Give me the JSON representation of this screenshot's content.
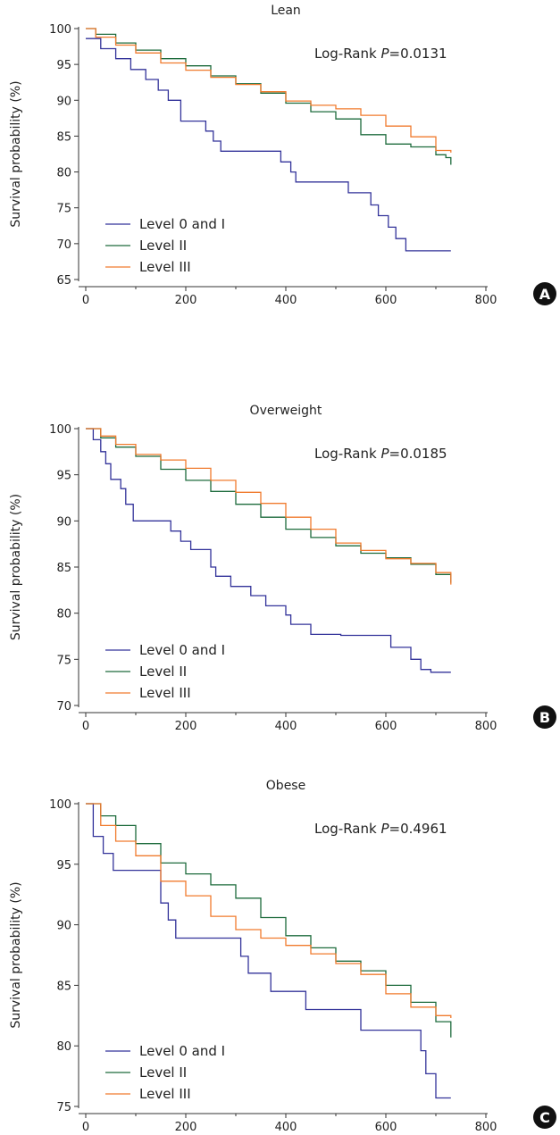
{
  "chart_data": [
    {
      "type": "line",
      "panel": "A",
      "title": "Lean",
      "xlabel": "",
      "ylabel": "Survival probability (%)",
      "xlim": [
        0,
        800
      ],
      "ylim": [
        65,
        100
      ],
      "xticks": [
        0,
        200,
        400,
        600,
        800
      ],
      "yticks": [
        65,
        70,
        75,
        80,
        85,
        90,
        95,
        100
      ],
      "annotation": {
        "prefix": "Log-Rank ",
        "p": "P",
        "value": "=0.0131"
      },
      "legend_position": "bottom-left",
      "series": [
        {
          "name": "Level 0 and I",
          "color": "#33339a",
          "x": [
            0,
            10,
            30,
            60,
            90,
            120,
            145,
            165,
            190,
            240,
            255,
            270,
            390,
            410,
            420,
            525,
            570,
            585,
            605,
            620,
            640,
            730
          ],
          "y": [
            98.6,
            98.6,
            97.2,
            95.8,
            94.3,
            92.9,
            91.4,
            90.0,
            87.1,
            85.7,
            84.3,
            82.9,
            81.4,
            80.0,
            78.6,
            77.1,
            75.4,
            73.9,
            72.3,
            70.7,
            69.0,
            69.0
          ]
        },
        {
          "name": "Level II",
          "color": "#1d6b3c",
          "x": [
            0,
            20,
            60,
            100,
            150,
            200,
            250,
            300,
            350,
            400,
            450,
            500,
            550,
            600,
            650,
            700,
            720,
            730
          ],
          "y": [
            100,
            99.2,
            98.0,
            97.0,
            95.8,
            94.8,
            93.4,
            92.3,
            91.0,
            89.6,
            88.4,
            87.4,
            85.2,
            83.9,
            83.5,
            82.4,
            82.0,
            81.0
          ]
        },
        {
          "name": "Level III",
          "color": "#f07b2e",
          "x": [
            0,
            20,
            60,
            100,
            150,
            200,
            250,
            300,
            350,
            400,
            450,
            500,
            550,
            600,
            650,
            700,
            730
          ],
          "y": [
            100,
            98.8,
            97.7,
            96.6,
            95.2,
            94.2,
            93.2,
            92.2,
            91.2,
            89.9,
            89.3,
            88.8,
            87.9,
            86.4,
            84.9,
            83.0,
            82.7
          ]
        }
      ]
    },
    {
      "type": "line",
      "panel": "B",
      "title": "Overweight",
      "xlabel": "",
      "ylabel": "Survival probability (%)",
      "xlim": [
        0,
        800
      ],
      "ylim": [
        70,
        100
      ],
      "xticks": [
        0,
        200,
        400,
        600,
        800
      ],
      "yticks": [
        70,
        75,
        80,
        85,
        90,
        95,
        100
      ],
      "annotation": {
        "prefix": "Log-Rank ",
        "p": "P",
        "value": "=0.0185"
      },
      "legend_position": "bottom-left",
      "series": [
        {
          "name": "Level 0 and I",
          "color": "#33339a",
          "x": [
            0,
            15,
            30,
            40,
            50,
            70,
            80,
            95,
            170,
            190,
            210,
            250,
            260,
            290,
            330,
            360,
            400,
            410,
            450,
            510,
            610,
            650,
            670,
            690,
            730
          ],
          "y": [
            100,
            98.8,
            97.5,
            96.2,
            94.5,
            93.5,
            91.8,
            90.0,
            88.9,
            87.8,
            86.9,
            85.0,
            84.0,
            82.9,
            81.9,
            80.8,
            79.8,
            78.8,
            77.7,
            77.6,
            76.3,
            75.0,
            73.9,
            73.6,
            73.6
          ]
        },
        {
          "name": "Level II",
          "color": "#1d6b3c",
          "x": [
            0,
            30,
            60,
            100,
            150,
            200,
            250,
            300,
            350,
            400,
            450,
            500,
            550,
            600,
            650,
            700,
            730
          ],
          "y": [
            100,
            99.0,
            98.0,
            97.0,
            95.6,
            94.4,
            93.2,
            91.8,
            90.4,
            89.1,
            88.2,
            87.3,
            86.5,
            86.0,
            85.3,
            84.2,
            83.3
          ]
        },
        {
          "name": "Level III",
          "color": "#f07b2e",
          "x": [
            0,
            30,
            60,
            100,
            150,
            200,
            250,
            300,
            350,
            400,
            450,
            500,
            550,
            600,
            650,
            700,
            730
          ],
          "y": [
            100,
            99.2,
            98.3,
            97.2,
            96.6,
            95.7,
            94.4,
            93.1,
            91.9,
            90.4,
            89.1,
            87.6,
            86.8,
            85.9,
            85.4,
            84.4,
            83.1
          ]
        }
      ]
    },
    {
      "type": "line",
      "panel": "C",
      "title": "Obese",
      "xlabel": "",
      "ylabel": "Survival probability (%)",
      "xlim": [
        0,
        800
      ],
      "ylim": [
        75,
        100
      ],
      "xticks": [
        0,
        200,
        400,
        600,
        800
      ],
      "yticks": [
        75,
        80,
        85,
        90,
        95,
        100
      ],
      "annotation": {
        "prefix": "Log-Rank ",
        "p": "P",
        "value": "=0.4961"
      },
      "legend_position": "bottom-left",
      "series": [
        {
          "name": "Level 0 and I",
          "color": "#33339a",
          "x": [
            0,
            15,
            35,
            55,
            140,
            150,
            165,
            180,
            190,
            310,
            325,
            370,
            440,
            550,
            670,
            680,
            700,
            730
          ],
          "y": [
            100,
            97.3,
            95.9,
            94.5,
            94.5,
            91.8,
            90.4,
            88.9,
            88.9,
            87.4,
            86.0,
            84.5,
            83.0,
            81.3,
            79.6,
            77.7,
            75.7,
            75.7
          ]
        },
        {
          "name": "Level II",
          "color": "#1d6b3c",
          "x": [
            0,
            30,
            60,
            100,
            150,
            200,
            250,
            300,
            350,
            400,
            450,
            500,
            550,
            600,
            650,
            700,
            730
          ],
          "y": [
            100,
            99.0,
            98.2,
            96.7,
            95.1,
            94.2,
            93.3,
            92.2,
            90.6,
            89.1,
            88.1,
            87.0,
            86.2,
            85.0,
            83.6,
            82.0,
            80.7
          ]
        },
        {
          "name": "Level III",
          "color": "#f07b2e",
          "x": [
            0,
            30,
            60,
            100,
            150,
            200,
            250,
            300,
            350,
            400,
            450,
            500,
            550,
            600,
            650,
            700,
            730
          ],
          "y": [
            100,
            98.2,
            96.9,
            95.7,
            93.6,
            92.4,
            90.7,
            89.6,
            88.9,
            88.3,
            87.6,
            86.8,
            85.9,
            84.3,
            83.2,
            82.5,
            82.3
          ]
        }
      ]
    }
  ]
}
